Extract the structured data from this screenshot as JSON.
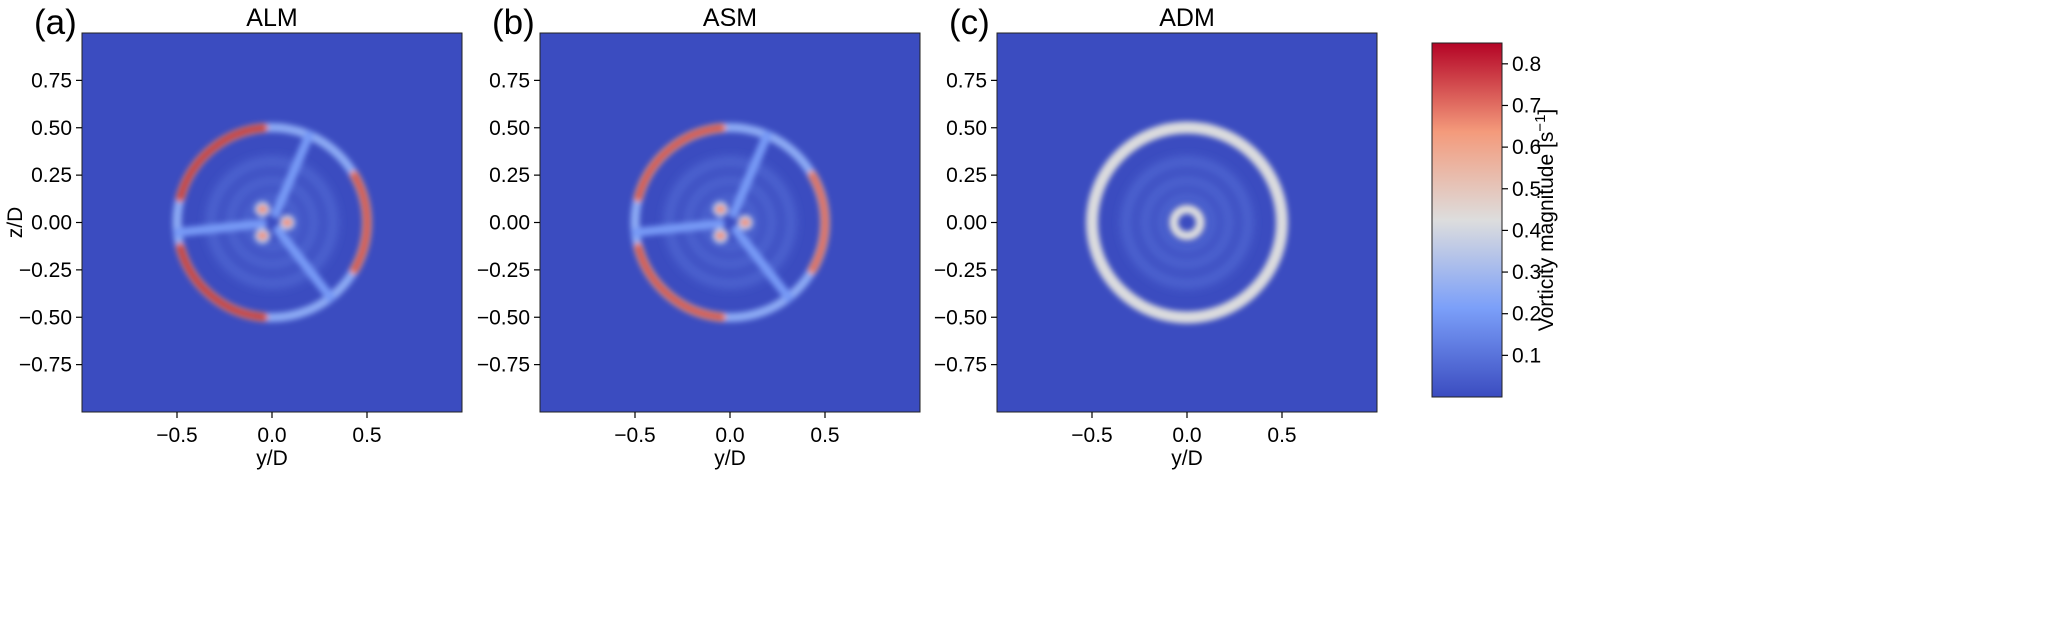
{
  "chart_data": [
    {
      "type": "heatmap",
      "panel_label": "(a)",
      "title": "ALM",
      "xlabel": "y/D",
      "ylabel": "z/D",
      "xlim": [
        -1,
        1
      ],
      "ylim": [
        -1,
        1
      ],
      "xticks": [
        "-0.5",
        "0.0",
        "0.5"
      ],
      "xtick_values": [
        -0.5,
        0,
        0.5
      ],
      "yticks": [
        "0.75",
        "0.50",
        "0.25",
        "0.00",
        "-0.25",
        "-0.50",
        "-0.75"
      ],
      "ytick_values": [
        0.75,
        0.5,
        0.25,
        0,
        -0.25,
        -0.5,
        -0.75
      ],
      "background_value": 0.0,
      "tip_ring": {
        "radius": 0.5,
        "value": 0.25
      },
      "tip_vortex_arcs": [
        {
          "from_deg": 95,
          "to_deg": 165,
          "value": 0.85
        },
        {
          "from_deg": 195,
          "to_deg": 265,
          "value": 0.85
        },
        {
          "from_deg": -30,
          "to_deg": 30,
          "value": 0.8
        }
      ],
      "blades_deg": [
        67,
        186,
        -52
      ],
      "blade_value": 0.2,
      "hub_spots": [
        {
          "y": -0.05,
          "z": 0.07,
          "value": 0.65
        },
        {
          "y": 0.08,
          "z": 0.0,
          "value": 0.65
        },
        {
          "y": -0.05,
          "z": -0.07,
          "value": 0.65
        }
      ]
    },
    {
      "type": "heatmap",
      "panel_label": "(b)",
      "title": "ASM",
      "xlabel": "y/D",
      "ylabel": "",
      "xlim": [
        -1,
        1
      ],
      "ylim": [
        -1,
        1
      ],
      "xticks": [
        "-0.5",
        "0.0",
        "0.5"
      ],
      "xtick_values": [
        -0.5,
        0,
        0.5
      ],
      "yticks": [
        "0.75",
        "0.50",
        "0.25",
        "0.00",
        "-0.25",
        "-0.50",
        "-0.75"
      ],
      "ytick_values": [
        0.75,
        0.5,
        0.25,
        0,
        -0.25,
        -0.5,
        -0.75
      ],
      "background_value": 0.0,
      "tip_ring": {
        "radius": 0.5,
        "value": 0.25
      },
      "tip_vortex_arcs": [
        {
          "from_deg": 95,
          "to_deg": 165,
          "value": 0.8
        },
        {
          "from_deg": 195,
          "to_deg": 265,
          "value": 0.8
        },
        {
          "from_deg": -30,
          "to_deg": 30,
          "value": 0.75
        }
      ],
      "blades_deg": [
        67,
        186,
        -52
      ],
      "blade_value": 0.2,
      "hub_spots": [
        {
          "y": -0.05,
          "z": 0.07,
          "value": 0.65
        },
        {
          "y": 0.08,
          "z": 0.0,
          "value": 0.65
        },
        {
          "y": -0.05,
          "z": -0.07,
          "value": 0.65
        }
      ]
    },
    {
      "type": "heatmap",
      "panel_label": "(c)",
      "title": "ADM",
      "xlabel": "y/D",
      "ylabel": "",
      "xlim": [
        -1,
        1
      ],
      "ylim": [
        -1,
        1
      ],
      "xticks": [
        "-0.5",
        "0.0",
        "0.5"
      ],
      "xtick_values": [
        -0.5,
        0,
        0.5
      ],
      "yticks": [
        "0.75",
        "0.50",
        "0.25",
        "0.00",
        "-0.25",
        "-0.50",
        "-0.75"
      ],
      "ytick_values": [
        0.75,
        0.5,
        0.25,
        0,
        -0.25,
        -0.5,
        -0.75
      ],
      "background_value": 0.0,
      "tip_ring": {
        "radius": 0.5,
        "value": 0.42
      },
      "hub_ring": {
        "radius": 0.07,
        "value": 0.42
      },
      "tip_vortex_arcs": [],
      "blades_deg": [],
      "hub_spots": []
    }
  ],
  "colorbar": {
    "label": "Vorticity magnitude [s",
    "label_sup": "−1",
    "label_end": "]",
    "range": [
      0,
      0.85
    ],
    "ticks": [
      "0.1",
      "0.2",
      "0.3",
      "0.4",
      "0.5",
      "0.6",
      "0.7",
      "0.8"
    ],
    "tick_values": [
      0.1,
      0.2,
      0.3,
      0.4,
      0.5,
      0.6,
      0.7,
      0.8
    ],
    "colormap": "coolwarm",
    "colormap_stops": [
      "#3b4cc0",
      "#7b9ff9",
      "#dddddd",
      "#f49a7b",
      "#b40426"
    ]
  }
}
